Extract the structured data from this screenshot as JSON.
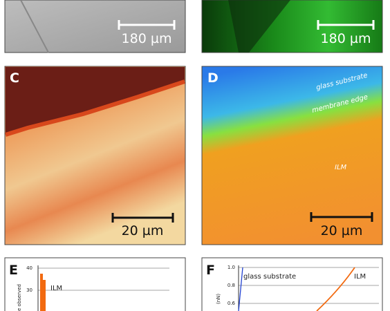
{
  "panel_a": {
    "scale_bar": "180 µm"
  },
  "panel_b": {
    "scale_bar": "180 µm"
  },
  "panel_c": {
    "label": "C",
    "scale_bar": "20 µm"
  },
  "panel_d": {
    "label": "D",
    "scale_bar": "20 µm",
    "annotations": [
      "glass substrate",
      "membrane edge",
      "ILM"
    ]
  },
  "panel_e": {
    "label": "E",
    "y_axis_label": "e observed",
    "yticks": [
      "40",
      "30"
    ],
    "annotation": "ILM"
  },
  "panel_f": {
    "label": "F",
    "y_axis_label": "(nN)",
    "yticks": [
      "1.0",
      "0.8",
      "0.6"
    ],
    "annotations": [
      "glass substrate",
      "ILM"
    ]
  }
}
